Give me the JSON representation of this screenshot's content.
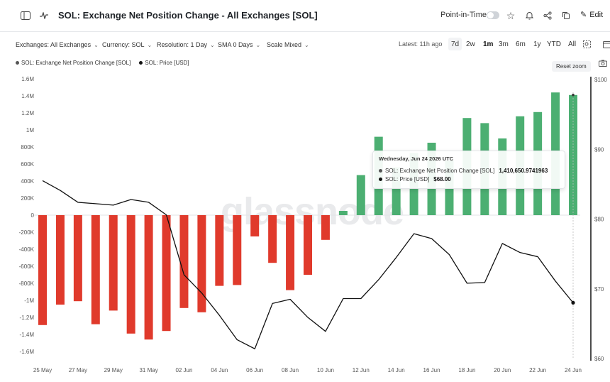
{
  "header": {
    "title": "SOL: Exchange Net Position Change - All Exchanges [SOL]",
    "pit_label": "Point-in-Time",
    "edit_label": "Edit"
  },
  "toolbar": {
    "exchanges": "Exchanges: All Exchanges",
    "currency": "Currency: SOL",
    "resolution": "Resolution: 1 Day",
    "sma": "SMA 0 Days",
    "scale": "Scale Mixed",
    "latest": "Latest: 11h ago",
    "ranges": [
      "7d",
      "2w",
      "1m",
      "3m",
      "6m",
      "1y",
      "YTD",
      "All"
    ],
    "active_range": "1m"
  },
  "legend": {
    "series1": "SOL: Exchange Net Position Change [SOL]",
    "series2": "SOL: Price [USD]",
    "reset_zoom": "Reset zoom"
  },
  "tooltip": {
    "date": "Wednesday, Jun 24 2026 UTC",
    "row1_label": "SOL: Exchange Net Position Change [SOL]",
    "row1_value": "1,410,650.9741963",
    "row2_label": "SOL: Price [USD]",
    "row2_value": "$68.00"
  },
  "colors": {
    "negative": "#e03a2c",
    "positive": "#4caf72",
    "price_line": "#111111"
  },
  "chart_data": {
    "type": "bar",
    "x": [
      "25 May",
      "26 May",
      "27 May",
      "28 May",
      "29 May",
      "30 May",
      "31 May",
      "01 Jun",
      "02 Jun",
      "03 Jun",
      "04 Jun",
      "05 Jun",
      "06 Jun",
      "07 Jun",
      "08 Jun",
      "09 Jun",
      "10 Jun",
      "11 Jun",
      "12 Jun",
      "13 Jun",
      "14 Jun",
      "15 Jun",
      "16 Jun",
      "17 Jun",
      "18 Jun",
      "19 Jun",
      "20 Jun",
      "21 Jun",
      "22 Jun",
      "23 Jun",
      "24 Jun"
    ],
    "x_tick_labels": [
      "25 May",
      "27 May",
      "29 May",
      "31 May",
      "02 Jun",
      "04 Jun",
      "06 Jun",
      "08 Jun",
      "10 Jun",
      "12 Jun",
      "14 Jun",
      "16 Jun",
      "18 Jun",
      "20 Jun",
      "22 Jun",
      "24 Jun"
    ],
    "series": [
      {
        "name": "SOL: Exchange Net Position Change [SOL]",
        "axis": "left",
        "values": [
          -1290000,
          -1050000,
          -1010000,
          -1280000,
          -1120000,
          -1390000,
          -1460000,
          -1360000,
          -1090000,
          -1140000,
          -830000,
          -820000,
          -250000,
          -560000,
          -880000,
          -700000,
          -290000,
          50000,
          470000,
          920000,
          560000,
          730000,
          850000,
          640000,
          1140000,
          1080000,
          900000,
          1160000,
          1210000,
          1440000,
          1410000
        ]
      },
      {
        "name": "SOL: Price [USD]",
        "axis": "right",
        "values": [
          85.5,
          84.1,
          82.4,
          82.2,
          82.0,
          82.8,
          82.4,
          80.6,
          72.0,
          69.4,
          66.2,
          62.7,
          61.4,
          67.9,
          68.5,
          65.9,
          63.9,
          68.6,
          68.6,
          71.3,
          74.5,
          77.9,
          77.2,
          74.9,
          70.8,
          70.9,
          76.5,
          75.2,
          74.6,
          71.1,
          68.0
        ]
      }
    ],
    "y_left": {
      "ticks": [
        "1.6M",
        "1.4M",
        "1.2M",
        "1M",
        "800K",
        "600K",
        "400K",
        "200K",
        "0",
        "-200K",
        "-400K",
        "-600K",
        "-800K",
        "-1M",
        "-1.2M",
        "-1.4M",
        "-1.6M"
      ],
      "range": [
        -1600000,
        1600000
      ]
    },
    "y_right": {
      "ticks": [
        "$100",
        "$90",
        "$80",
        "$70",
        "$60"
      ],
      "range": [
        60,
        100
      ]
    },
    "watermark": "glassnode",
    "grid": false
  }
}
